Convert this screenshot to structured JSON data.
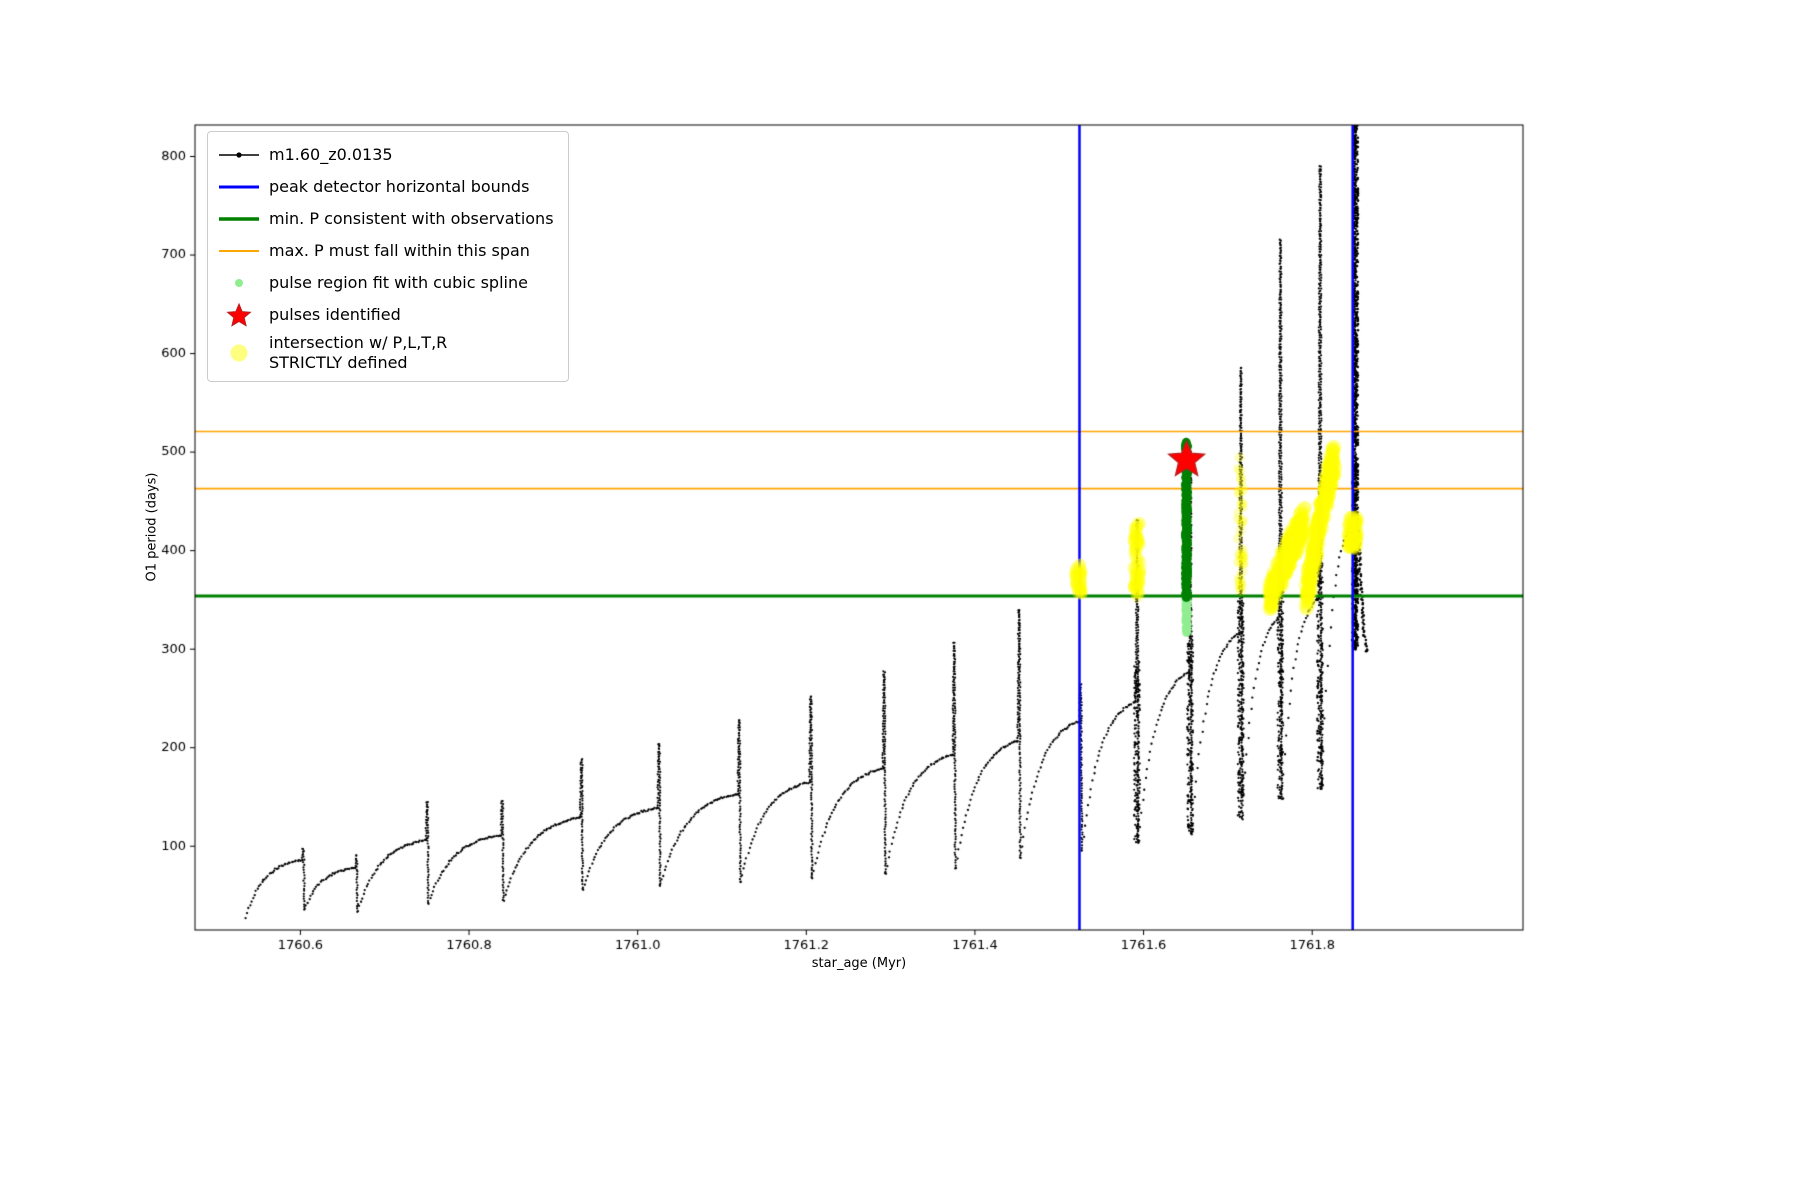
{
  "chart_data": {
    "type": "line",
    "title": "",
    "xlabel": "star_age (Myr)",
    "ylabel": "O1 period (days)",
    "xlim": [
      1760.475,
      1762.05
    ],
    "ylim": [
      15,
      832
    ],
    "x_ticks": [
      1760.6,
      1760.8,
      1761.0,
      1761.2,
      1761.4,
      1761.6,
      1761.8
    ],
    "y_ticks": [
      100,
      200,
      300,
      400,
      500,
      600,
      700,
      800
    ],
    "grid": false,
    "legend_position": "upper-left",
    "series": [
      {
        "name": "m1.60_z0.0135",
        "color": "#000000",
        "style": "line-dot",
        "cycles_format": [
          "x_start",
          "x_end",
          "period_low",
          "period_base",
          "spike_peak"
        ],
        "cycles": [
          [
            1760.535,
            1760.602,
            28,
            86,
            97
          ],
          [
            1760.605,
            1760.665,
            36,
            78,
            90
          ],
          [
            1760.668,
            1760.749,
            34,
            106,
            145
          ],
          [
            1760.752,
            1760.838,
            42,
            111,
            146
          ],
          [
            1760.841,
            1760.932,
            45,
            129,
            188
          ],
          [
            1760.935,
            1761.024,
            56,
            139,
            204
          ],
          [
            1761.027,
            1761.119,
            60,
            153,
            228
          ],
          [
            1761.122,
            1761.204,
            64,
            165,
            252
          ],
          [
            1761.207,
            1761.291,
            68,
            179,
            277
          ],
          [
            1761.294,
            1761.374,
            72,
            193,
            306
          ],
          [
            1761.377,
            1761.451,
            78,
            207,
            340
          ],
          [
            1761.454,
            1761.524,
            88,
            227,
            264
          ],
          [
            1761.527,
            1761.591,
            96,
            247,
            430
          ],
          [
            1761.594,
            1761.654,
            104,
            277,
            500
          ],
          [
            1761.657,
            1761.714,
            113,
            317,
            585
          ],
          [
            1761.717,
            1761.761,
            128,
            333,
            715
          ],
          [
            1761.764,
            1761.808,
            148,
            352,
            790
          ],
          [
            1761.811,
            1761.849,
            158,
            430,
            840
          ]
        ],
        "dense_columns": [
          {
            "x": 1761.852,
            "y0": 300,
            "y1": 832,
            "n": 700,
            "w": 0.005
          }
        ],
        "tail": [
          [
            1761.854,
            428
          ],
          [
            1761.856,
            396
          ],
          [
            1761.858,
            362
          ],
          [
            1761.86,
            334
          ],
          [
            1761.862,
            314
          ],
          [
            1761.864,
            300
          ],
          [
            1761.866,
            297
          ]
        ]
      }
    ],
    "overlays": {
      "peak_detector_bounds": {
        "label": "peak detector horizontal bounds",
        "color": "#0000ff",
        "x_values": [
          1761.524,
          1761.848
        ],
        "linewidth": 2.5
      },
      "min_p_line": {
        "label": "min. P consistent with observations",
        "color": "#008000",
        "y": 354,
        "linewidth": 3
      },
      "max_p_span": {
        "label": "max. P must fall within this span",
        "color": "#ffa500",
        "y_values": [
          463,
          521
        ],
        "linewidth": 1.6
      },
      "pulse_region_fit": {
        "label": "pulse region fit with cubic spline",
        "color": "#90ee90",
        "x": 1761.651,
        "y_range": [
          312,
          358
        ],
        "n": 60
      },
      "pulse_spline_core": {
        "color": "#008000",
        "x": 1761.651,
        "y_range": [
          352,
          510
        ],
        "n": 160
      },
      "pulses_identified": {
        "label": "pulses identified",
        "color": "#ff0000",
        "edge_color": "#b22222",
        "points": [
          [
            1761.651,
            492
          ]
        ]
      },
      "intersection_strict": {
        "label": "intersection w/ P,L,T,R\nSTRICTLY defined",
        "color": "#ffff00",
        "clusters": [
          {
            "x0": 1761.519,
            "x1": 1761.527,
            "y0": 356,
            "y1": 386,
            "n": 45,
            "r": 6
          },
          {
            "x0": 1761.588,
            "x1": 1761.596,
            "y0": 352,
            "y1": 430,
            "n": 80,
            "r": 6
          },
          {
            "x0": 1761.712,
            "x1": 1761.719,
            "y0": 356,
            "y1": 502,
            "n": 40,
            "r": 5
          },
          {
            "x0": 1761.75,
            "x1": 1761.79,
            "y0": 352,
            "y1": 430,
            "n": 300,
            "r": 7
          },
          {
            "x0": 1761.793,
            "x1": 1761.826,
            "y0": 352,
            "y1": 495,
            "n": 300,
            "r": 7
          },
          {
            "x0": 1761.843,
            "x1": 1761.853,
            "y0": 402,
            "y1": 434,
            "n": 70,
            "r": 7
          }
        ]
      }
    }
  },
  "legend": {
    "items": [
      {
        "label": "m1.60_z0.0135",
        "marker": "line-dot",
        "color": "#000000",
        "lw": 1.5
      },
      {
        "label": "peak detector horizontal bounds",
        "marker": "line",
        "color": "#0000ff",
        "lw": 3
      },
      {
        "label": "min. P consistent with observations",
        "marker": "line",
        "color": "#008000",
        "lw": 3.5
      },
      {
        "label": "max. P must fall within this span",
        "marker": "line",
        "color": "#ffa500",
        "lw": 2
      },
      {
        "label": "pulse region fit with cubic spline",
        "marker": "dot-small",
        "color": "#90ee90"
      },
      {
        "label": "pulses identified",
        "marker": "star",
        "color": "#ff0000"
      },
      {
        "label": "intersection w/ P,L,T,R\nSTRICTLY defined",
        "marker": "dot-large",
        "color": "rgba(255,255,0,0.5)"
      }
    ]
  }
}
